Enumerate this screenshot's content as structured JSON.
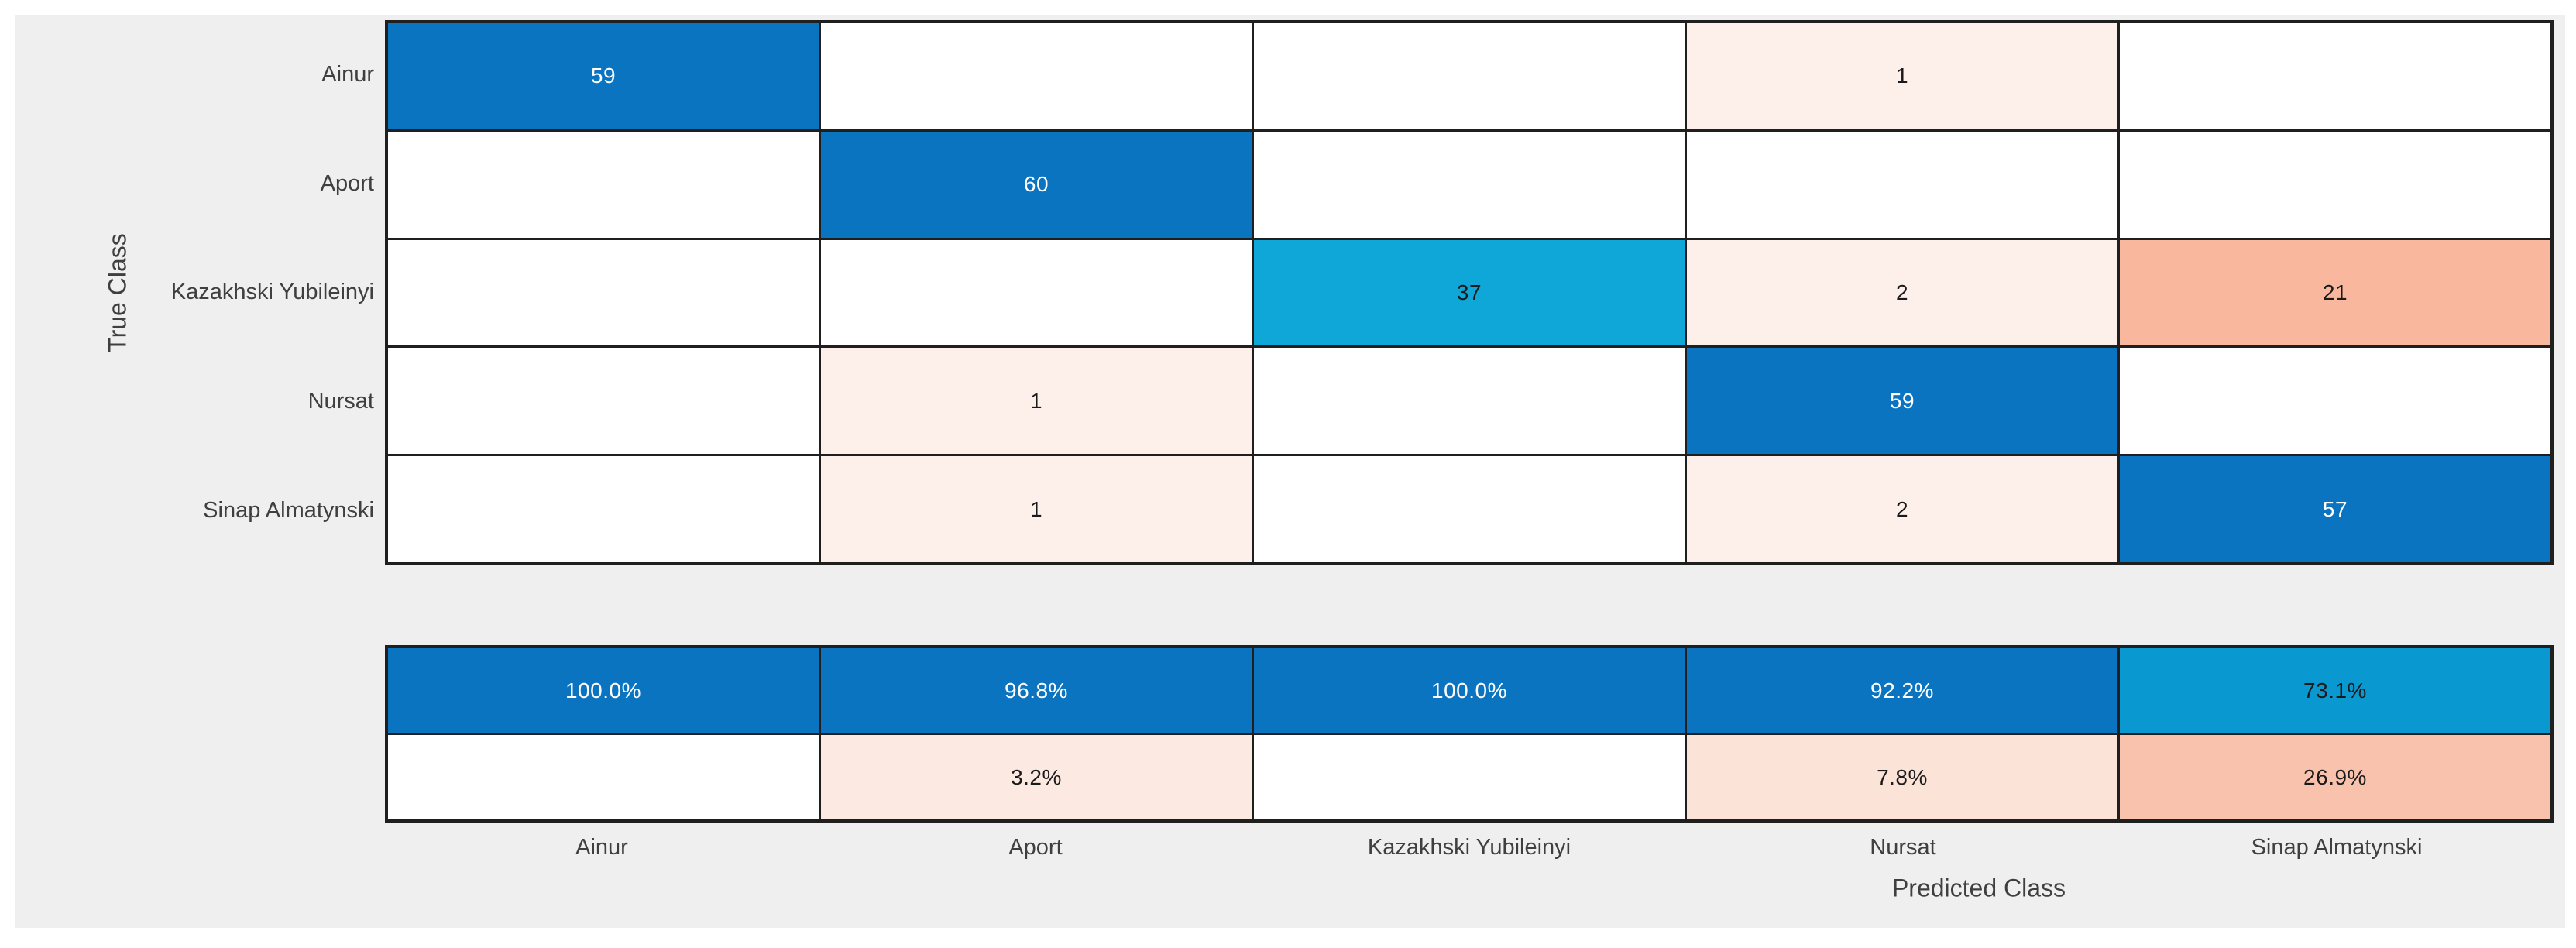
{
  "figure": {
    "background": "#ffffff",
    "panel_color": "#efefef",
    "grid_line_color": "#1f1f1f",
    "label_color": "#3f3f3f"
  },
  "chart_data": {
    "type": "heatmap",
    "subtype": "confusion-matrix-with-column-summary",
    "title": "",
    "xlabel": "Predicted Class",
    "ylabel": "True Class",
    "legend": "none",
    "grid": "cell-borders",
    "classes": [
      "Ainur",
      "Aport",
      "Kazakhski Yubileinyi",
      "Nursat",
      "Sinap Almatynski"
    ],
    "values": [
      [
        59,
        0,
        0,
        1,
        0
      ],
      [
        0,
        60,
        0,
        0,
        0
      ],
      [
        0,
        0,
        37,
        2,
        21
      ],
      [
        0,
        1,
        0,
        59,
        0
      ],
      [
        0,
        1,
        0,
        2,
        57
      ]
    ],
    "column_summary_percent": {
      "correct": [
        100.0,
        96.8,
        100.0,
        92.2,
        73.1
      ],
      "incorrect": [
        null,
        3.2,
        null,
        7.8,
        26.9
      ]
    },
    "colors": {
      "diagonal_high_blue": "#0b74c1",
      "diagonal_mid_cyan": "#0fa6d8",
      "summary_cyan": "#0999d0",
      "offdiag_light_pink": "#fdefe9",
      "offdiag_pink_3pct": "#fceae2",
      "offdiag_pink_8pct": "#fbe3d7",
      "offdiag_salmon_21": "#f9b89d",
      "offdiag_salmon_27pct": "#f9c2ac",
      "empty_cell": "#ffffff",
      "text_on_dark": "#ffffff",
      "text_on_light": "#1a1a1a"
    },
    "cells": [
      [
        {
          "label": "59",
          "bg": "#0b74c1",
          "fg": "#ffffff"
        },
        {
          "label": "",
          "bg": "#ffffff",
          "fg": "#1a1a1a"
        },
        {
          "label": "",
          "bg": "#ffffff",
          "fg": "#1a1a1a"
        },
        {
          "label": "1",
          "bg": "#fdefe9",
          "fg": "#1a1a1a"
        },
        {
          "label": "",
          "bg": "#ffffff",
          "fg": "#1a1a1a"
        }
      ],
      [
        {
          "label": "",
          "bg": "#ffffff",
          "fg": "#1a1a1a"
        },
        {
          "label": "60",
          "bg": "#0b74c1",
          "fg": "#ffffff"
        },
        {
          "label": "",
          "bg": "#ffffff",
          "fg": "#1a1a1a"
        },
        {
          "label": "",
          "bg": "#ffffff",
          "fg": "#1a1a1a"
        },
        {
          "label": "",
          "bg": "#ffffff",
          "fg": "#1a1a1a"
        }
      ],
      [
        {
          "label": "",
          "bg": "#ffffff",
          "fg": "#1a1a1a"
        },
        {
          "label": "",
          "bg": "#ffffff",
          "fg": "#1a1a1a"
        },
        {
          "label": "37",
          "bg": "#0fa6d8",
          "fg": "#1a1a1a"
        },
        {
          "label": "2",
          "bg": "#fdefe9",
          "fg": "#1a1a1a"
        },
        {
          "label": "21",
          "bg": "#f9b89d",
          "fg": "#1a1a1a"
        }
      ],
      [
        {
          "label": "",
          "bg": "#ffffff",
          "fg": "#1a1a1a"
        },
        {
          "label": "1",
          "bg": "#fdefe9",
          "fg": "#1a1a1a"
        },
        {
          "label": "",
          "bg": "#ffffff",
          "fg": "#1a1a1a"
        },
        {
          "label": "59",
          "bg": "#0b74c1",
          "fg": "#ffffff"
        },
        {
          "label": "",
          "bg": "#ffffff",
          "fg": "#1a1a1a"
        }
      ],
      [
        {
          "label": "",
          "bg": "#ffffff",
          "fg": "#1a1a1a"
        },
        {
          "label": "1",
          "bg": "#fdefe9",
          "fg": "#1a1a1a"
        },
        {
          "label": "",
          "bg": "#ffffff",
          "fg": "#1a1a1a"
        },
        {
          "label": "2",
          "bg": "#fdefe9",
          "fg": "#1a1a1a"
        },
        {
          "label": "57",
          "bg": "#0b74c1",
          "fg": "#ffffff"
        }
      ]
    ],
    "summary_cells": [
      [
        {
          "label": "100.0%",
          "bg": "#0b74c1",
          "fg": "#ffffff"
        },
        {
          "label": "96.8%",
          "bg": "#0b74c1",
          "fg": "#ffffff"
        },
        {
          "label": "100.0%",
          "bg": "#0b74c1",
          "fg": "#ffffff"
        },
        {
          "label": "92.2%",
          "bg": "#0b74c1",
          "fg": "#ffffff"
        },
        {
          "label": "73.1%",
          "bg": "#0999d0",
          "fg": "#1a1a1a"
        }
      ],
      [
        {
          "label": "",
          "bg": "#ffffff",
          "fg": "#1a1a1a"
        },
        {
          "label": "3.2%",
          "bg": "#fceae2",
          "fg": "#1a1a1a"
        },
        {
          "label": "",
          "bg": "#ffffff",
          "fg": "#1a1a1a"
        },
        {
          "label": "7.8%",
          "bg": "#fbe3d7",
          "fg": "#1a1a1a"
        },
        {
          "label": "26.9%",
          "bg": "#f9c2ac",
          "fg": "#1a1a1a"
        }
      ]
    ]
  }
}
